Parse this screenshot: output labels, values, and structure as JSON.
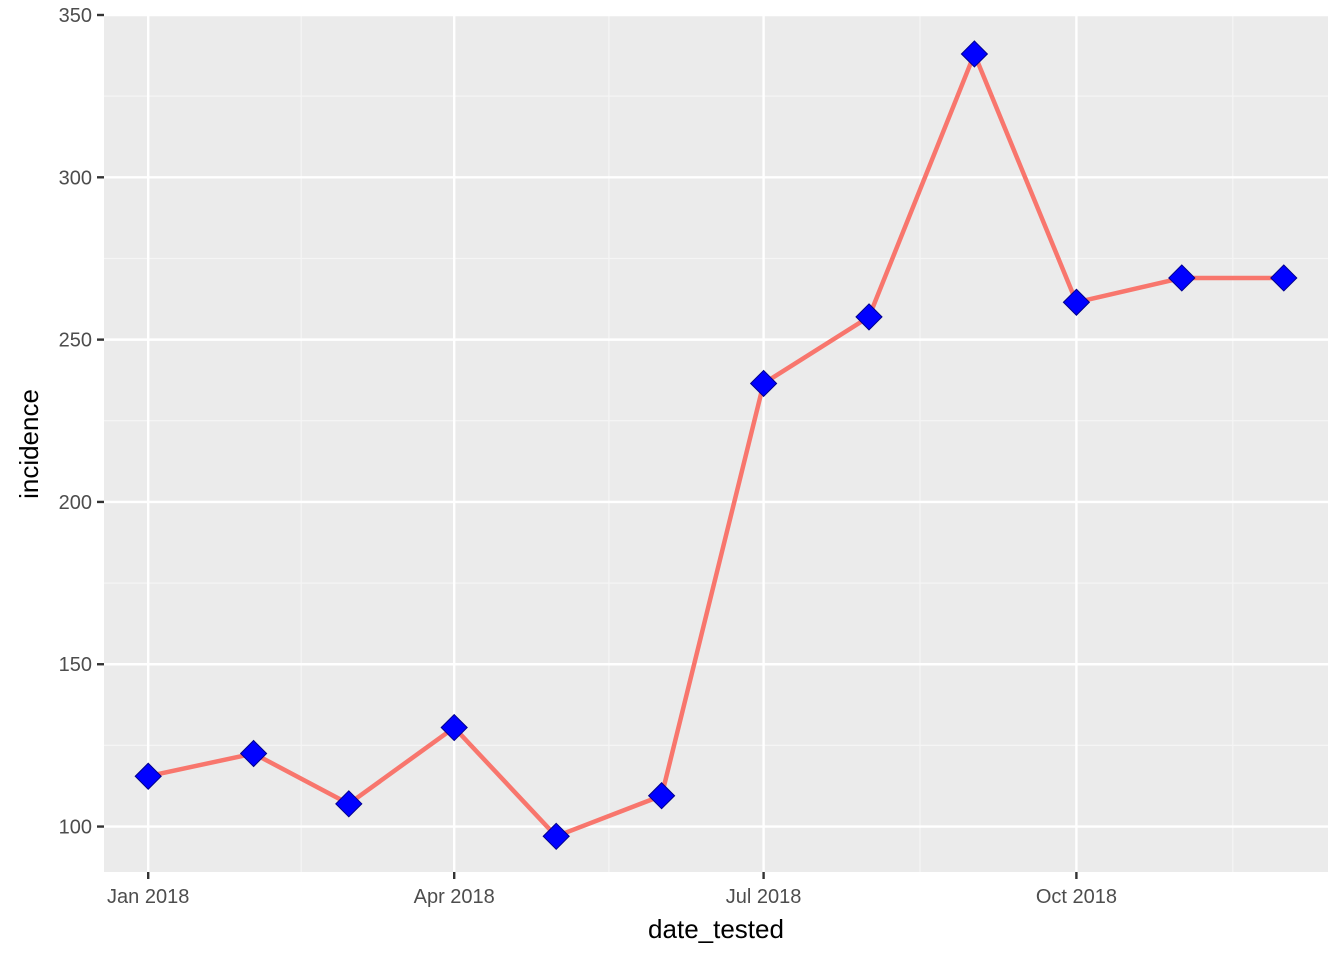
{
  "chart_data": {
    "type": "line",
    "xlabel": "date_tested",
    "ylabel": "incidence",
    "x_ticks": [
      {
        "date": "2018-01-01",
        "label": "Jan 2018"
      },
      {
        "date": "2018-04-01",
        "label": "Apr 2018"
      },
      {
        "date": "2018-07-01",
        "label": "Jul 2018"
      },
      {
        "date": "2018-10-01",
        "label": "Oct 2018"
      }
    ],
    "y_ticks": [
      100,
      150,
      200,
      250,
      300,
      350
    ],
    "xlim": [
      "2017-12-19",
      "2018-12-14"
    ],
    "ylim": [
      86,
      350
    ],
    "grid": true,
    "series": [
      {
        "x": [
          "2018-01-01",
          "2018-02-01",
          "2018-03-01",
          "2018-04-01",
          "2018-05-01",
          "2018-06-01",
          "2018-07-01",
          "2018-08-01",
          "2018-09-01",
          "2018-10-01",
          "2018-11-01",
          "2018-12-01"
        ],
        "y": [
          115.5,
          122.5,
          107,
          130.5,
          97,
          109.5,
          236.5,
          257,
          338,
          261.5,
          269,
          269
        ],
        "line_color": "#F8766D",
        "marker": "diamond",
        "marker_color": "#0000FF"
      }
    ],
    "colors": {
      "panel_background": "#EBEBEB",
      "grid_major": "#FFFFFF",
      "grid_minor": "#F5F5F5"
    }
  }
}
